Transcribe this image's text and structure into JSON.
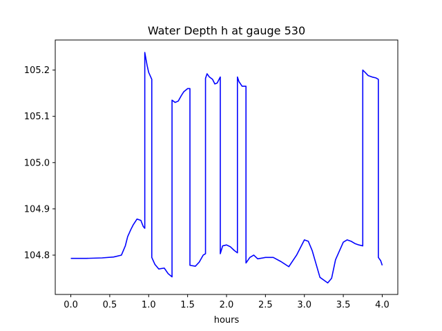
{
  "chart_data": {
    "type": "line",
    "title": "Water Depth h at gauge 530",
    "xlabel": "hours",
    "ylabel": "",
    "xlim": [
      -0.2,
      4.2
    ],
    "ylim": [
      104.715,
      105.265
    ],
    "xticks": [
      0.0,
      0.5,
      1.0,
      1.5,
      2.0,
      2.5,
      3.0,
      3.5,
      4.0
    ],
    "xtick_labels": [
      "0.0",
      "0.5",
      "1.0",
      "1.5",
      "2.0",
      "2.5",
      "3.0",
      "3.5",
      "4.0"
    ],
    "yticks": [
      104.8,
      104.9,
      105.0,
      105.1,
      105.2
    ],
    "ytick_labels": [
      "104.8",
      "104.9",
      "105.0",
      "105.1",
      "105.2"
    ],
    "grid": false,
    "series": [
      {
        "color": "#0000ff",
        "x": [
          0.0,
          0.2,
          0.4,
          0.55,
          0.65,
          0.7,
          0.73,
          0.77,
          0.8,
          0.85,
          0.9,
          0.93,
          0.95,
          0.95,
          0.98,
          1.0,
          1.04,
          1.04,
          1.08,
          1.13,
          1.2,
          1.25,
          1.3,
          1.3,
          1.34,
          1.38,
          1.42,
          1.45,
          1.5,
          1.53,
          1.53,
          1.6,
          1.65,
          1.7,
          1.73,
          1.73,
          1.75,
          1.78,
          1.82,
          1.85,
          1.88,
          1.92,
          1.92,
          1.95,
          2.0,
          2.05,
          2.1,
          2.14,
          2.14,
          2.16,
          2.2,
          2.25,
          2.25,
          2.3,
          2.35,
          2.4,
          2.5,
          2.6,
          2.7,
          2.8,
          2.9,
          3.0,
          3.05,
          3.1,
          3.2,
          3.3,
          3.35,
          3.4,
          3.5,
          3.55,
          3.6,
          3.65,
          3.7,
          3.75,
          3.75,
          3.78,
          3.82,
          3.87,
          3.92,
          3.95,
          3.95,
          3.98,
          4.0
        ],
        "y": [
          104.793,
          104.793,
          104.794,
          104.796,
          104.8,
          104.82,
          104.84,
          104.855,
          104.865,
          104.878,
          104.875,
          104.862,
          104.858,
          105.238,
          105.21,
          105.195,
          105.18,
          104.795,
          104.78,
          104.77,
          104.772,
          104.76,
          104.753,
          105.135,
          105.13,
          105.133,
          105.145,
          105.153,
          105.16,
          105.16,
          104.778,
          104.776,
          104.785,
          104.8,
          104.803,
          105.182,
          105.192,
          105.185,
          105.18,
          105.17,
          105.172,
          105.185,
          104.803,
          104.82,
          104.822,
          104.818,
          104.81,
          104.805,
          105.185,
          105.175,
          105.165,
          105.165,
          104.783,
          104.795,
          104.8,
          104.792,
          104.795,
          104.795,
          104.786,
          104.775,
          104.8,
          104.833,
          104.83,
          104.81,
          104.752,
          104.74,
          104.75,
          104.79,
          104.828,
          104.833,
          104.83,
          104.825,
          104.822,
          104.82,
          105.2,
          105.195,
          105.188,
          105.185,
          105.183,
          105.18,
          104.795,
          104.788,
          104.778
        ]
      }
    ]
  }
}
